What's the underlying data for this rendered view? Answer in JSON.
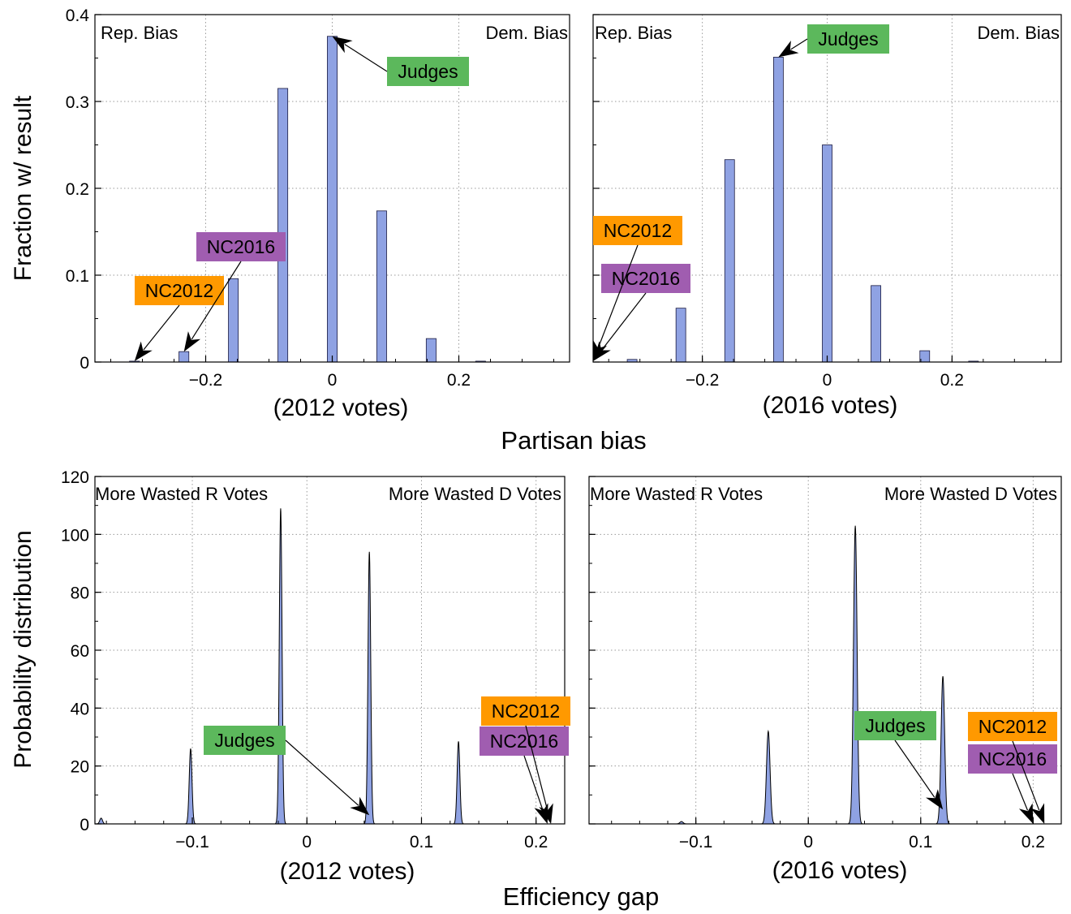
{
  "colors": {
    "bar": "#8fa2e3",
    "judges": "#5cb85c",
    "nc2012": "#ff9900",
    "nc2016": "#a05db0",
    "grid": "#9a9a9a"
  },
  "labels": {
    "top_ylabel": "Fraction w/ result",
    "top_xlabel": "Partisan bias",
    "bottom_ylabel": "Probability distribution",
    "bottom_xlabel": "Efficiency gap",
    "rep_bias": "Rep. Bias",
    "dem_bias": "Dem. Bias",
    "more_r": "More Wasted R Votes",
    "more_d": "More Wasted D Votes",
    "sub_2012": "(2012 votes)",
    "sub_2016": "(2016 votes)",
    "judges": "Judges",
    "nc2012": "NC2012",
    "nc2016": "NC2016"
  },
  "chart_data": [
    {
      "id": "bias2012",
      "type": "bar",
      "xlim": [
        -0.375,
        0.375
      ],
      "ylim": [
        0,
        0.4
      ],
      "xticks": [
        -0.2,
        0,
        0.2
      ],
      "xtick_labels": [
        "−0.2",
        "0",
        "0.2"
      ],
      "yticks": [
        0,
        0.1,
        0.2,
        0.3,
        0.4
      ],
      "ytick_labels": [
        "0",
        "0.1",
        "0.2",
        "0.3",
        "0.4"
      ],
      "grid": true,
      "bar_width": 0.0156,
      "x": [
        -0.3125,
        -0.2344,
        -0.1563,
        -0.0781,
        0,
        0.0781,
        0.1563,
        0.2344
      ],
      "values": [
        0.001,
        0.012,
        0.096,
        0.315,
        0.375,
        0.174,
        0.027,
        0.001
      ],
      "annotations": [
        {
          "label": "judges",
          "x": 0,
          "y": 0.375
        },
        {
          "label": "nc2016",
          "x": -0.2344,
          "y": 0.012
        },
        {
          "label": "nc2012",
          "x": -0.3125,
          "y": 0.001
        }
      ]
    },
    {
      "id": "bias2016",
      "type": "bar",
      "xlim": [
        -0.375,
        0.375
      ],
      "ylim": [
        0,
        0.4
      ],
      "xticks": [
        -0.2,
        0,
        0.2
      ],
      "xtick_labels": [
        "−0.2",
        "0",
        "0.2"
      ],
      "yticks": [
        0,
        0.1,
        0.2,
        0.3,
        0.4
      ],
      "grid": true,
      "bar_width": 0.0156,
      "x": [
        -0.3125,
        -0.2344,
        -0.1563,
        -0.0781,
        0,
        0.0781,
        0.1563,
        0.2344
      ],
      "values": [
        0.003,
        0.062,
        0.233,
        0.351,
        0.25,
        0.088,
        0.013,
        0.001
      ],
      "annotations": [
        {
          "label": "judges",
          "x": -0.0781,
          "y": 0.351
        },
        {
          "label": "nc2012",
          "x": -0.375,
          "y": 0.001
        },
        {
          "label": "nc2016",
          "x": -0.375,
          "y": 0.001
        }
      ]
    },
    {
      "id": "eg2012",
      "type": "area",
      "xlim": [
        -0.185,
        0.225
      ],
      "ylim": [
        0,
        120
      ],
      "xticks": [
        -0.1,
        0,
        0.1,
        0.2
      ],
      "xtick_labels": [
        "−0.1",
        "0",
        "0.1",
        "0.2"
      ],
      "yticks": [
        0,
        20,
        40,
        60,
        80,
        100,
        120
      ],
      "ytick_labels": [
        "0",
        "20",
        "40",
        "60",
        "80",
        "100",
        "120"
      ],
      "grid": true,
      "peaks": [
        {
          "center": -0.1796,
          "height": 2,
          "width": 0.0012
        },
        {
          "center": -0.1015,
          "height": 26,
          "width": 0.0012
        },
        {
          "center": -0.0229,
          "height": 109,
          "width": 0.0012
        },
        {
          "center": 0.0545,
          "height": 94,
          "width": 0.0012
        },
        {
          "center": 0.1323,
          "height": 28.5,
          "width": 0.0012
        }
      ],
      "annotations": [
        {
          "label": "judges",
          "x": 0.0545,
          "y": 3
        },
        {
          "label": "nc2012",
          "x": 0.213,
          "y": 0
        },
        {
          "label": "nc2016",
          "x": 0.21,
          "y": 0
        }
      ]
    },
    {
      "id": "eg2016",
      "type": "area",
      "xlim": [
        -0.195,
        0.225
      ],
      "ylim": [
        0,
        120
      ],
      "xticks": [
        -0.1,
        0,
        0.1,
        0.2
      ],
      "xtick_labels": [
        "−0.1",
        "0",
        "0.1",
        "0.2"
      ],
      "yticks": [
        0,
        20,
        40,
        60,
        80,
        100,
        120
      ],
      "grid": true,
      "peaks": [
        {
          "center": -0.1128,
          "height": 0.8,
          "width": 0.0015
        },
        {
          "center": -0.0356,
          "height": 32,
          "width": 0.0016
        },
        {
          "center": 0.0418,
          "height": 103,
          "width": 0.0016
        },
        {
          "center": 0.1197,
          "height": 51,
          "width": 0.0016
        }
      ],
      "annotations": [
        {
          "label": "judges",
          "x": 0.1197,
          "y": 5
        },
        {
          "label": "nc2012",
          "x": 0.21,
          "y": 0
        },
        {
          "label": "nc2016",
          "x": 0.2,
          "y": 0
        }
      ]
    }
  ]
}
